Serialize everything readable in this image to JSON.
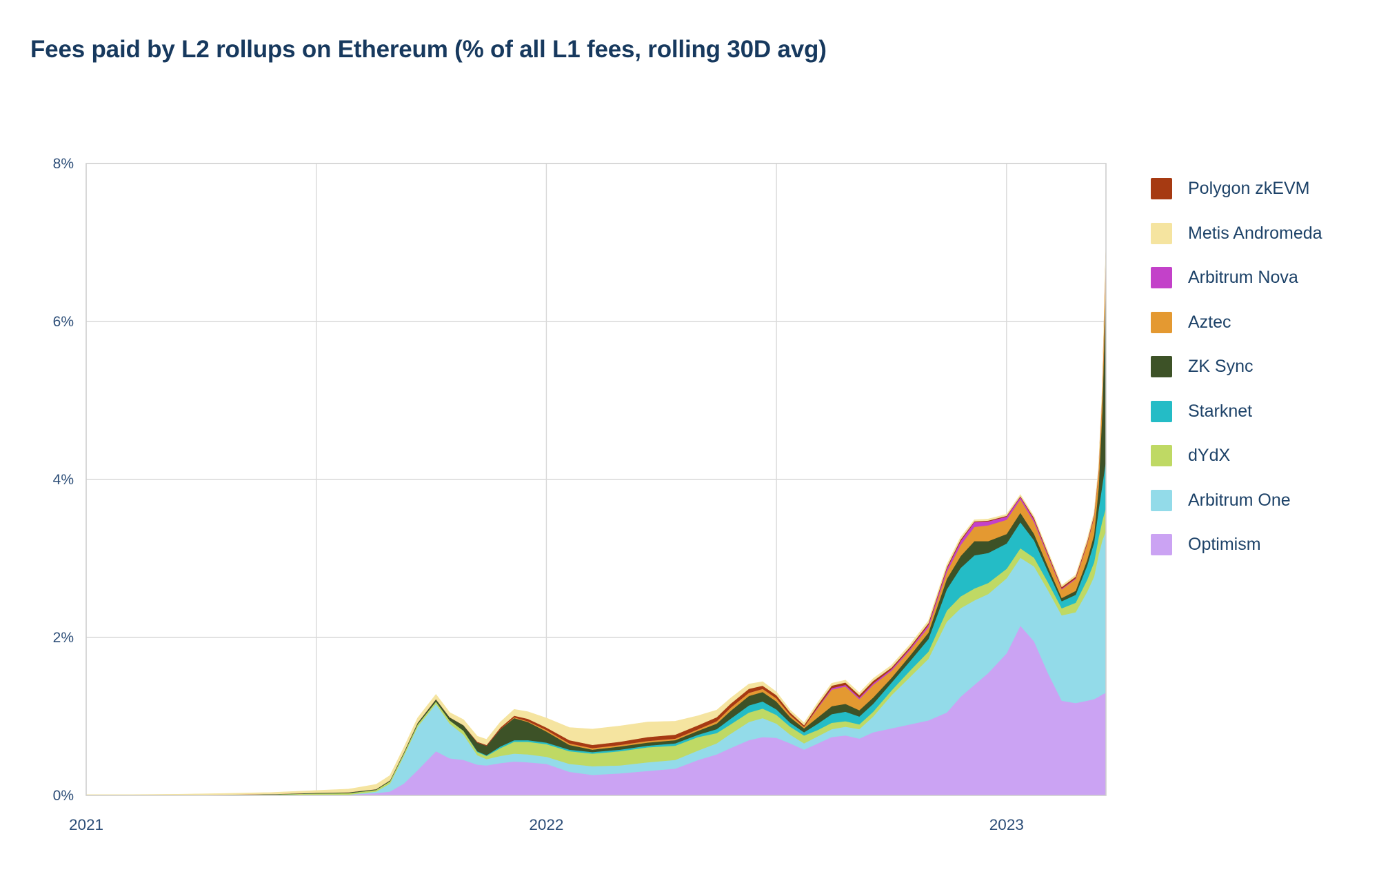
{
  "page": {
    "title": "Fees paid by L2 rollups on Ethereum (% of all L1 fees, rolling 30D avg)"
  },
  "colors": {
    "background": "#ffffff",
    "title_text": "#17395e",
    "axis_text": "#2c4d77",
    "legend_text": "#1d4268",
    "gridline": "#d9d9d9",
    "plot_border": "#cfcfcf"
  },
  "chart_data": {
    "type": "area",
    "stacked": true,
    "title": "Fees paid by L2 rollups on Ethereum (% of all L1 fees, rolling 30D avg)",
    "xlabel": "",
    "ylabel": "",
    "grid": true,
    "legend_position": "right",
    "legend_order_top_to_bottom": [
      "Polygon zkEVM",
      "Metis Andromeda",
      "Arbitrum Nova",
      "Aztec",
      "ZK Sync",
      "Starknet",
      "dYdX",
      "Arbitrum One",
      "Optimism"
    ],
    "x_axis": {
      "range": [
        2021.0,
        2023.216
      ],
      "gridlines": [
        2021.5,
        2022.0,
        2022.5,
        2023.0
      ],
      "ticks": [
        {
          "value": 2021.0,
          "label": "2021"
        },
        {
          "value": 2022.0,
          "label": "2022"
        },
        {
          "value": 2023.0,
          "label": "2023"
        }
      ]
    },
    "y_axis": {
      "range": [
        0,
        8
      ],
      "unit": "% of all L1 fees",
      "ticks": [
        {
          "value": 0,
          "label": "0%"
        },
        {
          "value": 2,
          "label": "2%"
        },
        {
          "value": 4,
          "label": "4%"
        },
        {
          "value": 6,
          "label": "6%"
        },
        {
          "value": 8,
          "label": "8%"
        }
      ]
    },
    "stack_order": "bottom-to-top",
    "x": [
      2021.0,
      2021.1,
      2021.2,
      2021.3,
      2021.4,
      2021.5,
      2021.57,
      2021.63,
      2021.66,
      2021.69,
      2021.72,
      2021.76,
      2021.79,
      2021.82,
      2021.85,
      2021.87,
      2021.9,
      2021.93,
      2021.96,
      2022.0,
      2022.05,
      2022.1,
      2022.16,
      2022.22,
      2022.28,
      2022.33,
      2022.37,
      2022.4,
      2022.44,
      2022.47,
      2022.5,
      2022.53,
      2022.56,
      2022.59,
      2022.62,
      2022.65,
      2022.68,
      2022.71,
      2022.75,
      2022.79,
      2022.83,
      2022.87,
      2022.9,
      2022.93,
      2022.96,
      2023.0,
      2023.03,
      2023.06,
      2023.09,
      2023.12,
      2023.15,
      2023.175,
      2023.19,
      2023.2,
      2023.208,
      2023.216
    ],
    "series": [
      {
        "name": "Optimism",
        "slug": "optimism",
        "color": "#cba3f3",
        "values": [
          0,
          0,
          0,
          0.002,
          0.004,
          0.01,
          0.01,
          0.03,
          0.05,
          0.15,
          0.32,
          0.56,
          0.47,
          0.45,
          0.39,
          0.38,
          0.41,
          0.43,
          0.42,
          0.4,
          0.3,
          0.26,
          0.28,
          0.31,
          0.34,
          0.45,
          0.52,
          0.6,
          0.7,
          0.74,
          0.73,
          0.66,
          0.58,
          0.66,
          0.74,
          0.76,
          0.72,
          0.8,
          0.85,
          0.9,
          0.95,
          1.05,
          1.25,
          1.4,
          1.55,
          1.8,
          2.15,
          1.95,
          1.55,
          1.2,
          1.17,
          1.2,
          1.22,
          1.25,
          1.28,
          1.3
        ]
      },
      {
        "name": "Arbitrum One",
        "slug": "arbitrum-one",
        "color": "#93dbe9",
        "values": [
          0,
          0,
          0,
          0,
          0,
          0,
          0,
          0.02,
          0.1,
          0.35,
          0.55,
          0.6,
          0.44,
          0.32,
          0.12,
          0.08,
          0.09,
          0.1,
          0.1,
          0.09,
          0.1,
          0.11,
          0.1,
          0.11,
          0.11,
          0.12,
          0.14,
          0.18,
          0.23,
          0.24,
          0.18,
          0.11,
          0.08,
          0.09,
          0.1,
          0.11,
          0.12,
          0.2,
          0.42,
          0.6,
          0.78,
          1.15,
          1.12,
          1.07,
          1.0,
          0.95,
          0.86,
          0.95,
          1.05,
          1.08,
          1.15,
          1.38,
          1.55,
          1.8,
          1.95,
          2.05
        ]
      },
      {
        "name": "dYdX",
        "slug": "dydx",
        "color": "#bfd964",
        "values": [
          0,
          0,
          0.003,
          0.005,
          0.008,
          0.015,
          0.02,
          0.02,
          0.03,
          0.03,
          0.03,
          0.03,
          0.04,
          0.05,
          0.04,
          0.04,
          0.1,
          0.15,
          0.16,
          0.16,
          0.16,
          0.16,
          0.18,
          0.19,
          0.18,
          0.17,
          0.13,
          0.12,
          0.12,
          0.12,
          0.11,
          0.1,
          0.1,
          0.08,
          0.08,
          0.07,
          0.06,
          0.06,
          0.06,
          0.08,
          0.09,
          0.14,
          0.15,
          0.15,
          0.14,
          0.12,
          0.12,
          0.11,
          0.1,
          0.09,
          0.12,
          0.15,
          0.18,
          0.22,
          0.25,
          0.3
        ]
      },
      {
        "name": "Starknet",
        "slug": "starknet",
        "color": "#24bcc6",
        "values": [
          0,
          0,
          0,
          0,
          0,
          0,
          0,
          0,
          0,
          0,
          0,
          0,
          0,
          0,
          0.01,
          0.01,
          0.02,
          0.02,
          0.02,
          0.02,
          0.02,
          0.02,
          0.02,
          0.02,
          0.03,
          0.03,
          0.05,
          0.07,
          0.09,
          0.09,
          0.07,
          0.05,
          0.04,
          0.08,
          0.11,
          0.12,
          0.1,
          0.1,
          0.1,
          0.12,
          0.16,
          0.27,
          0.36,
          0.42,
          0.38,
          0.32,
          0.33,
          0.22,
          0.14,
          0.09,
          0.1,
          0.18,
          0.25,
          0.35,
          0.45,
          0.6
        ]
      },
      {
        "name": "ZK Sync",
        "slug": "zk-sync",
        "color": "#3d5227",
        "values": [
          0,
          0,
          0,
          0.003,
          0.005,
          0.008,
          0.01,
          0.01,
          0.012,
          0.015,
          0.02,
          0.03,
          0.04,
          0.07,
          0.11,
          0.12,
          0.22,
          0.28,
          0.23,
          0.14,
          0.06,
          0.03,
          0.04,
          0.04,
          0.04,
          0.05,
          0.07,
          0.1,
          0.12,
          0.12,
          0.1,
          0.07,
          0.05,
          0.08,
          0.1,
          0.1,
          0.08,
          0.08,
          0.06,
          0.07,
          0.08,
          0.13,
          0.15,
          0.18,
          0.15,
          0.12,
          0.12,
          0.08,
          0.06,
          0.04,
          0.05,
          0.07,
          0.1,
          0.28,
          0.95,
          2.3
        ]
      },
      {
        "name": "Aztec",
        "slug": "aztec",
        "color": "#e49931",
        "values": [
          0,
          0,
          0,
          0,
          0,
          0,
          0,
          0,
          0,
          0,
          0,
          0,
          0,
          0,
          0,
          0,
          0,
          0.01,
          0.01,
          0.02,
          0.02,
          0.02,
          0.02,
          0.02,
          0.02,
          0.02,
          0.03,
          0.04,
          0.04,
          0.04,
          0.04,
          0.03,
          0.02,
          0.12,
          0.21,
          0.22,
          0.14,
          0.16,
          0.09,
          0.07,
          0.07,
          0.09,
          0.14,
          0.18,
          0.2,
          0.18,
          0.17,
          0.15,
          0.13,
          0.11,
          0.15,
          0.2,
          0.22,
          0.2,
          0.22,
          0.35
        ]
      },
      {
        "name": "Arbitrum Nova",
        "slug": "arbitrum-nova",
        "color": "#c341c9",
        "values": [
          0,
          0,
          0,
          0,
          0,
          0,
          0,
          0,
          0,
          0,
          0,
          0,
          0,
          0,
          0,
          0,
          0,
          0,
          0,
          0,
          0,
          0,
          0,
          0,
          0,
          0,
          0,
          0,
          0,
          0,
          0,
          0,
          0,
          0.01,
          0.02,
          0.02,
          0.02,
          0.02,
          0.02,
          0.02,
          0.03,
          0.04,
          0.05,
          0.06,
          0.05,
          0.04,
          0.03,
          0.03,
          0.02,
          0.01,
          0.01,
          0.01,
          0.01,
          0.01,
          0.01,
          0.02
        ]
      },
      {
        "name": "Polygon zkEVM",
        "slug": "polygon-zkevm",
        "color": "#a63a12",
        "values": [
          0,
          0,
          0,
          0,
          0,
          0,
          0,
          0,
          0,
          0,
          0,
          0,
          0,
          0,
          0.01,
          0.01,
          0.02,
          0.02,
          0.03,
          0.03,
          0.04,
          0.04,
          0.04,
          0.05,
          0.05,
          0.05,
          0.05,
          0.05,
          0.05,
          0.04,
          0.04,
          0.03,
          0.02,
          0.03,
          0.03,
          0.03,
          0.03,
          0.03,
          0.02,
          0.02,
          0.02,
          0.02,
          0.02,
          0.01,
          0.01,
          0.01,
          0.01,
          0.02,
          0.02,
          0.02,
          0.02,
          0.02,
          0.02,
          0.02,
          0.02,
          0.03
        ]
      },
      {
        "name": "Metis Andromeda",
        "slug": "metis-andromeda",
        "color": "#f5e4a0",
        "values": [
          0.01,
          0.01,
          0.012,
          0.015,
          0.02,
          0.03,
          0.04,
          0.06,
          0.06,
          0.06,
          0.06,
          0.06,
          0.06,
          0.07,
          0.07,
          0.07,
          0.07,
          0.08,
          0.09,
          0.12,
          0.16,
          0.2,
          0.2,
          0.19,
          0.17,
          0.12,
          0.09,
          0.07,
          0.06,
          0.05,
          0.04,
          0.03,
          0.03,
          0.03,
          0.03,
          0.03,
          0.03,
          0.03,
          0.03,
          0.03,
          0.03,
          0.03,
          0.03,
          0.02,
          0.02,
          0.02,
          0.02,
          0.02,
          0.02,
          0.02,
          0.02,
          0.03,
          0.03,
          0.03,
          0.04,
          0.06
        ]
      }
    ]
  }
}
